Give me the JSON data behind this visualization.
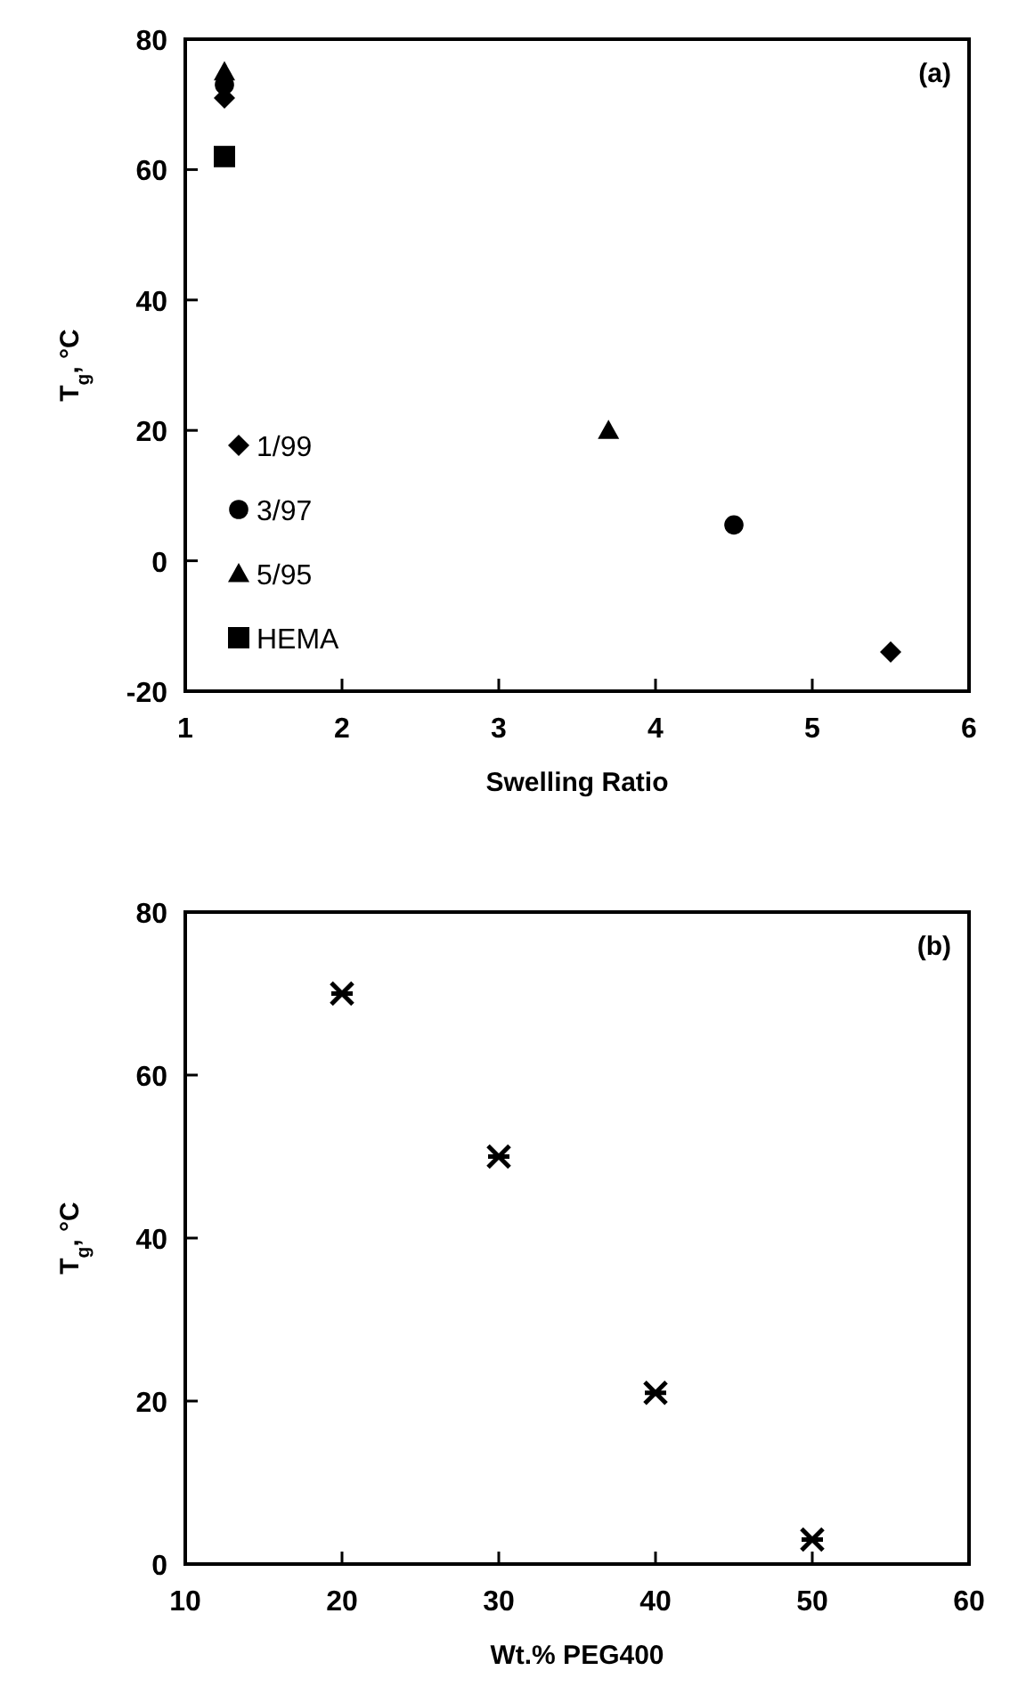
{
  "chart_data": [
    {
      "type": "scatter",
      "xlabel": "Swelling Ratio",
      "ylabel": "T$_{g}$, °C",
      "annotations": [
        "(a)"
      ],
      "xlim": [
        1,
        6
      ],
      "ylim": [
        -20,
        80
      ],
      "xticks": [
        1,
        2,
        3,
        4,
        5,
        6
      ],
      "yticks": [
        -20,
        0,
        20,
        40,
        60,
        80
      ],
      "legend": "bottom left",
      "series": [
        {
          "name": "1/99",
          "color": "#000000",
          "marker": "diamond",
          "x": [
            1.25,
            5.5
          ],
          "values": [
            71,
            -14
          ]
        },
        {
          "name": "3/97",
          "color": "#000000",
          "marker": "circle",
          "x": [
            1.25,
            4.5
          ],
          "values": [
            73,
            5.5
          ]
        },
        {
          "name": "5/95",
          "color": "#000000",
          "marker": "triangle",
          "x": [
            1.25,
            3.7
          ],
          "values": [
            75,
            20
          ]
        },
        {
          "name": "HEMA",
          "color": "#000000",
          "marker": "square",
          "x": [
            1.25
          ],
          "values": [
            62
          ]
        }
      ]
    },
    {
      "type": "scatter",
      "xlabel": "Wt.% PEG400",
      "ylabel": "T$_{g}$, °C",
      "annotations": [
        "(b)"
      ],
      "xlim": [
        10,
        60
      ],
      "ylim": [
        0,
        80
      ],
      "xticks": [
        10,
        20,
        30,
        40,
        50,
        60
      ],
      "yticks": [
        0,
        20,
        40,
        60,
        80
      ],
      "marker": "cross",
      "series": [
        {
          "color": "#000000",
          "x": [
            20,
            30,
            40,
            50
          ],
          "values": [
            70,
            50,
            21,
            3
          ]
        }
      ]
    }
  ]
}
